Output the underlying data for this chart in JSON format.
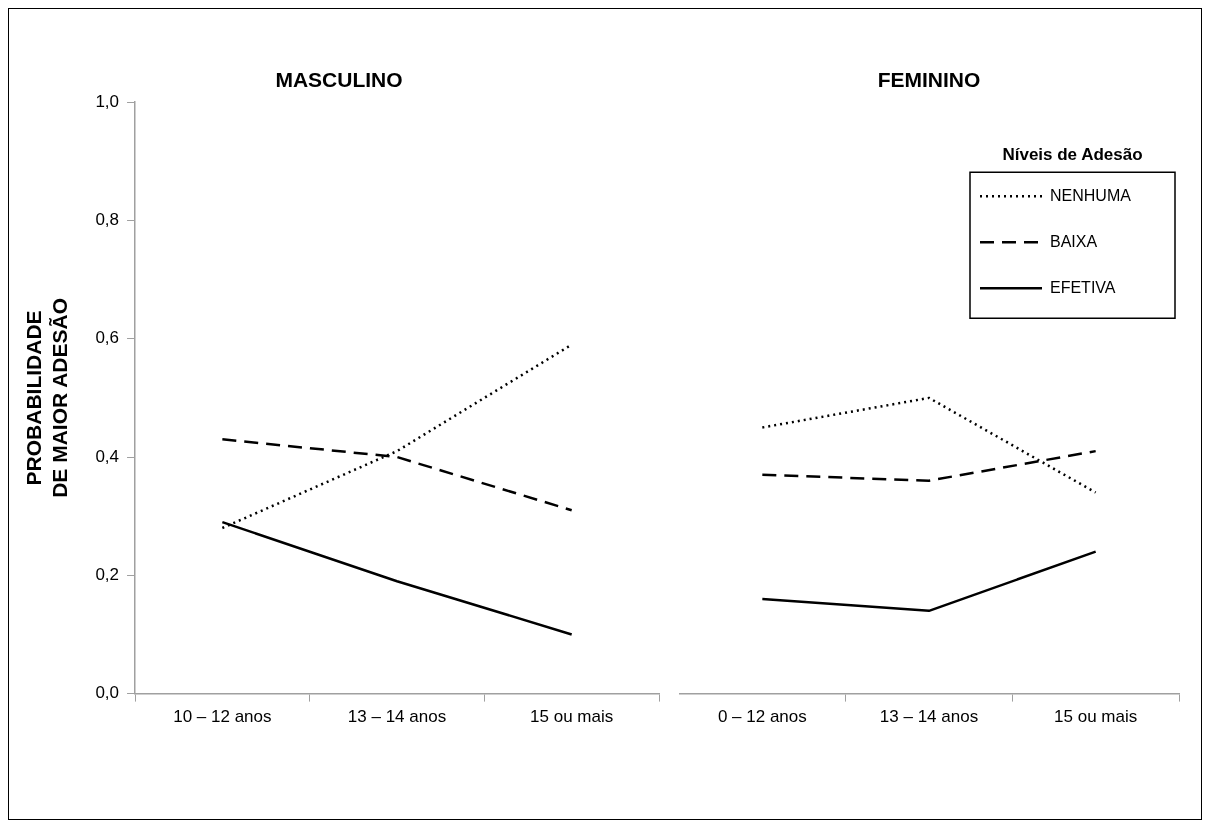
{
  "chart_data": [
    {
      "type": "line",
      "title": "MASCULINO",
      "ylabel": "PROBABILIDADE DE MAIOR ADESÃO",
      "categories": [
        "10 – 12 anos",
        "13 – 14 anos",
        "15 ou mais"
      ],
      "series": [
        {
          "color": "#000000",
          "line_style": "dotted",
          "values": [
            0.28,
            0.41,
            0.59
          ]
        },
        {
          "color": "#000000",
          "line_style": "dashed",
          "values": [
            0.43,
            0.4,
            0.31
          ]
        },
        {
          "color": "#000000",
          "line_style": "solid",
          "values": [
            0.29,
            0.19,
            0.1
          ]
        }
      ],
      "ylim": [
        0,
        1
      ],
      "yticks": [
        {
          "value": 0,
          "label": "0,0"
        },
        {
          "value": 0.2,
          "label": "0,2"
        },
        {
          "value": 0.4,
          "label": "0,4"
        },
        {
          "value": 0.6,
          "label": "0,6"
        },
        {
          "value": 0.8,
          "label": "0,8"
        },
        {
          "value": 1,
          "label": "1,0"
        }
      ],
      "grid": false,
      "marker": "none"
    },
    {
      "type": "line",
      "title": "FEMININO",
      "legend_title": "Níveis de Adesão",
      "categories": [
        "0 – 12 anos",
        "13 – 14 anos",
        "15 ou mais"
      ],
      "series": [
        {
          "name": "NENHUMA",
          "color": "#000000",
          "line_style": "dotted",
          "values": [
            0.45,
            0.5,
            0.34
          ]
        },
        {
          "name": "BAIXA",
          "color": "#000000",
          "line_style": "dashed",
          "values": [
            0.37,
            0.36,
            0.41
          ]
        },
        {
          "name": "EFETIVA",
          "color": "#000000",
          "line_style": "solid",
          "values": [
            0.16,
            0.14,
            0.24
          ]
        }
      ],
      "ylim": [
        0,
        1
      ],
      "tick_labels": "x",
      "grid": false,
      "marker": "none",
      "legend": "top right"
    }
  ]
}
